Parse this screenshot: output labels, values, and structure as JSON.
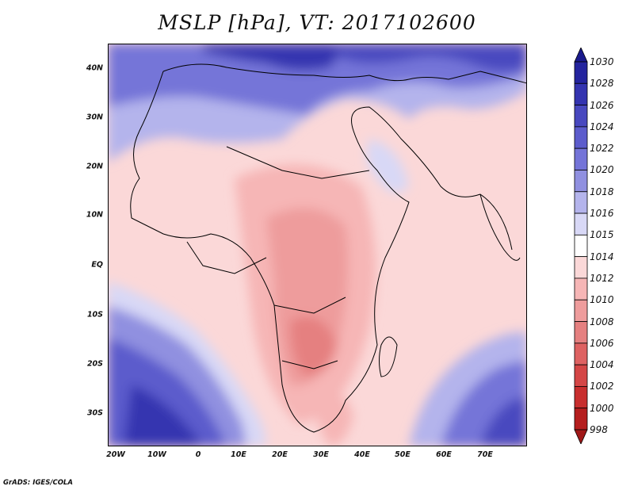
{
  "title": "MSLP [hPa], VT: 2017102600",
  "credit": "GrADS: IGES/COLA",
  "lat_labels": [
    "40N",
    "30N",
    "20N",
    "10N",
    "EQ",
    "10S",
    "20S",
    "30S"
  ],
  "lon_labels": [
    "20W",
    "10W",
    "0",
    "10E",
    "20E",
    "30E",
    "40E",
    "50E",
    "60E",
    "70E"
  ],
  "colorbar": {
    "levels": [
      "1030",
      "1028",
      "1026",
      "1024",
      "1022",
      "1020",
      "1018",
      "1016",
      "1015",
      "1014",
      "1012",
      "1010",
      "1008",
      "1006",
      "1004",
      "1002",
      "1000",
      "998"
    ],
    "colors": [
      "#1a1a8c",
      "#24249e",
      "#3434b0",
      "#4848bf",
      "#5c5ccc",
      "#7474d8",
      "#9090e0",
      "#b4b4ec",
      "#d8d8f6",
      "#ffffff",
      "#fbd8d8",
      "#f6b6b6",
      "#ee9c9c",
      "#e58080",
      "#de6262",
      "#d44646",
      "#c82e2e",
      "#b51e1e",
      "#a01818"
    ]
  },
  "colors": {
    "high": "#3434b0",
    "low": "#e58080",
    "neutral": "#ffffff",
    "land_outline": "#000000"
  }
}
